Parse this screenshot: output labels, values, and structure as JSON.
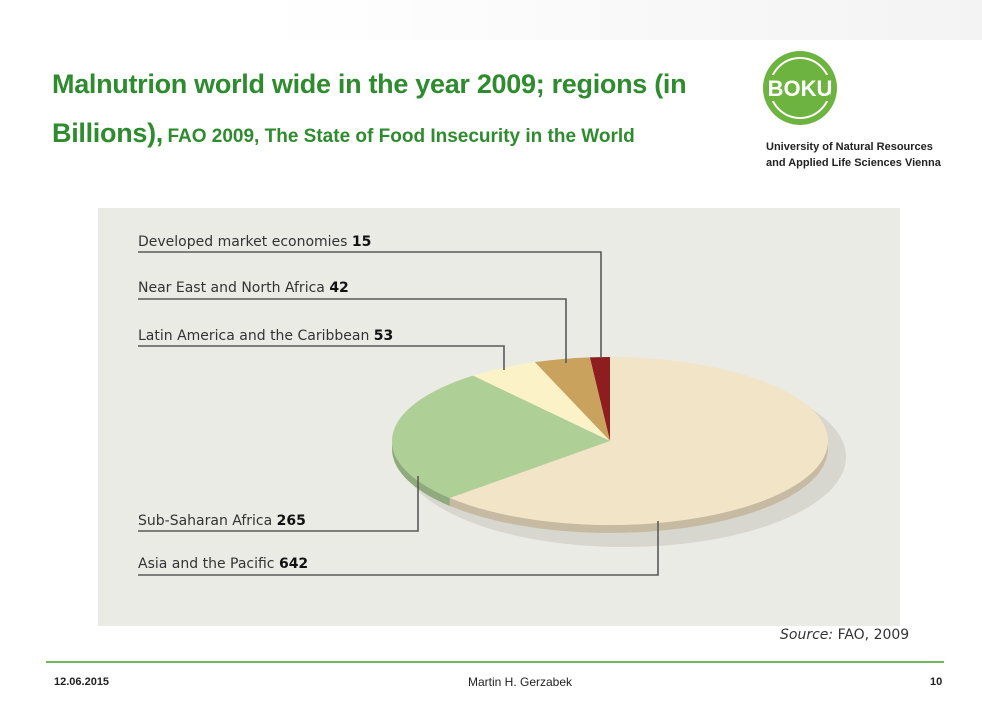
{
  "slide": {
    "title_main": "Malnutrion world wide in the year 2009; regions (in Billions),",
    "title_sub": "FAO 2009, The State of Food Insecurity in the World",
    "logo_text": "BOKU",
    "university_line1": "University of Natural Resources",
    "university_line2": "and Applied Life Sciences Vienna",
    "source_prefix": "Source:",
    "source_rest": "FAO, 2009",
    "date": "12.06.2015",
    "author": "Martin H. Gerzabek",
    "page_number": "10"
  },
  "colors": {
    "title_green": "#2e8b2e",
    "logo_green": "#6db33f",
    "panel_bg": "#ebebe6",
    "footer_line": "#6dbb5a"
  },
  "chart_data": {
    "type": "pie",
    "title": "",
    "series": [
      {
        "label": "Developed market economies",
        "value": 15,
        "value_text": "15",
        "color": "#8e1d1f"
      },
      {
        "label": "Near East and North Africa",
        "value": 42,
        "value_text": "42",
        "color": "#c9a25e"
      },
      {
        "label": "Latin America and the Caribbean",
        "value": 53,
        "value_text": "53",
        "color": "#fbf3c7"
      },
      {
        "label": "Sub-Saharan Africa",
        "value": 265,
        "value_text": "265",
        "color": "#aed097"
      },
      {
        "label": "Asia and the Pacific",
        "value": 642,
        "value_text": "642",
        "color": "#f2e4c6"
      }
    ],
    "start": "12 o'clock",
    "direction": "counter-clockwise",
    "style": "3d-tilted",
    "legend": "left, with leader lines"
  }
}
